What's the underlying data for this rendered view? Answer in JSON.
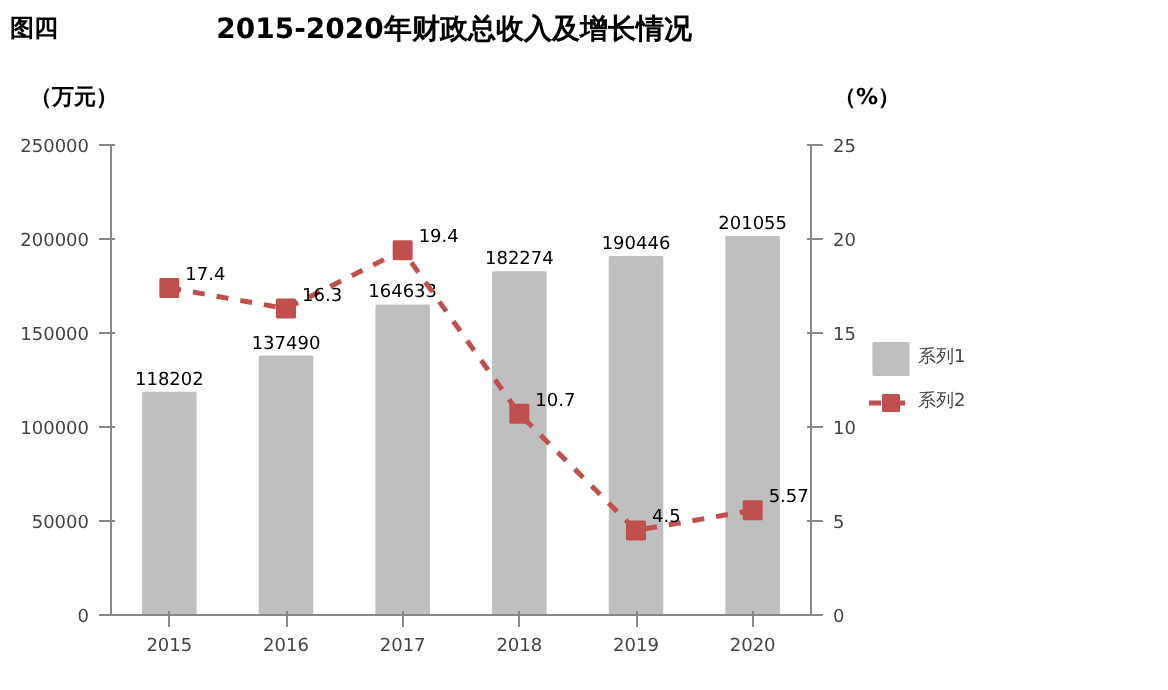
{
  "chart_data": {
    "type": "bar",
    "title": "2015-2020年财政总收入及增长情况",
    "annotations": [
      "图四"
    ],
    "ylabel": "（万元）",
    "y2label": "（%）",
    "categories": [
      "2015",
      "2016",
      "2017",
      "2018",
      "2019",
      "2020"
    ],
    "series": [
      {
        "name": "系列1",
        "color": "#bfbfbf",
        "values": [
          118202,
          137490,
          164633,
          182274,
          190446,
          201055
        ]
      },
      {
        "name": "系列2",
        "type": "line",
        "axis": "y2",
        "color": "#c0504d",
        "values": [
          17.4,
          16.3,
          19.4,
          10.7,
          4.5,
          5.57
        ]
      }
    ],
    "ylim": [
      0,
      250000
    ],
    "yticks": [
      0,
      50000,
      100000,
      150000,
      200000,
      250000
    ],
    "y2lim": [
      0,
      25
    ],
    "y2ticks": [
      0,
      5,
      10,
      15,
      20,
      25
    ],
    "marker": "square",
    "line_style": "dashed",
    "data_labels": true,
    "grid": false,
    "legend": "right"
  }
}
